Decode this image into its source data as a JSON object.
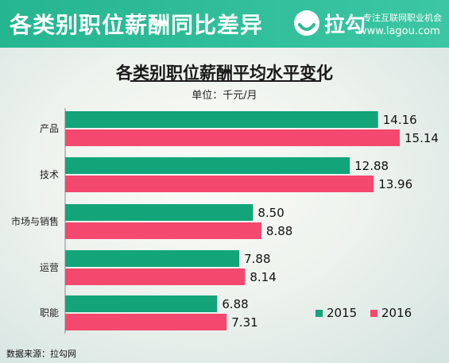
{
  "banner": {
    "title": "各类别职位薪酬同比差异",
    "logo_text": "拉勾",
    "slogan": "专注互联网职业机会",
    "url": "www.lagou.com"
  },
  "colors": {
    "banner_bg": "#2dbb96",
    "series_2015": "#14a47a",
    "series_2016": "#f4486e"
  },
  "chart_data": {
    "type": "bar",
    "orientation": "horizontal",
    "title": "各类别职位薪酬平均水平变化",
    "subtitle": "单位：千元/月",
    "categories": [
      "产品",
      "技术",
      "市场与销售",
      "运营",
      "职能"
    ],
    "series": [
      {
        "name": "2015",
        "values": [
          14.16,
          12.88,
          8.5,
          7.88,
          6.88
        ]
      },
      {
        "name": "2016",
        "values": [
          15.14,
          13.96,
          8.88,
          8.14,
          7.31
        ]
      }
    ],
    "value_labels": [
      [
        "14.16",
        "12.88",
        "8.50",
        "7.88",
        "6.88"
      ],
      [
        "15.14",
        "13.96",
        "8.88",
        "8.14",
        "7.31"
      ]
    ],
    "legend_position": "bottom-right",
    "grid": false
  },
  "source": "数据来源：拉勾网"
}
